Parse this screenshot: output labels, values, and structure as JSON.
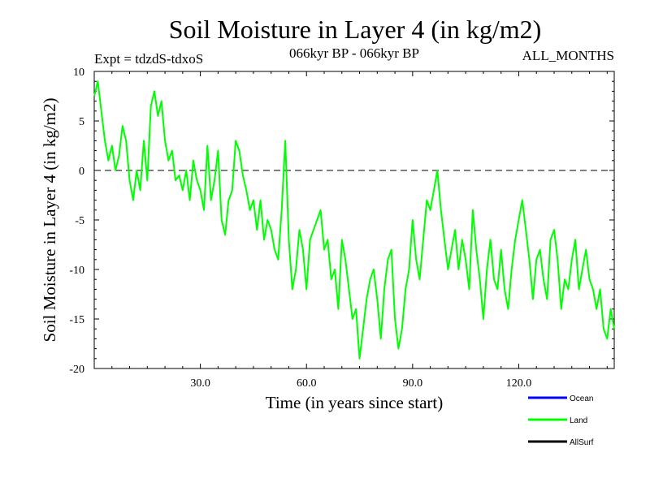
{
  "chart_data": {
    "type": "line",
    "title": "Soil Moisture in Layer 4 (in kg/m2)",
    "subtitle_left": "Expt = tdzdS-tdxoS",
    "subtitle_center": "066kyr BP - 066kyr BP",
    "subtitle_right": "ALL_MONTHS",
    "xlabel": "Time (in years since start)",
    "ylabel": "Soil Moisture in Layer 4 (in kg/m2)",
    "xlim": [
      0,
      147
    ],
    "ylim": [
      -20,
      10
    ],
    "x_ticks": [
      30,
      60,
      90,
      120
    ],
    "x_tick_labels": [
      "30.0",
      "60.0",
      "90.0",
      "120.0"
    ],
    "y_ticks": [
      10,
      5,
      0,
      -5,
      -10,
      -15,
      -20
    ],
    "y_tick_labels": [
      "10",
      "5",
      "0",
      "-5",
      "-10",
      "-15",
      "-20"
    ],
    "reference_line": 0,
    "legend": [
      {
        "name": "Ocean",
        "color": "#0000ff"
      },
      {
        "name": "Land",
        "color": "#00ff00"
      },
      {
        "name": "AllSurf",
        "color": "#000000"
      }
    ],
    "series": [
      {
        "name": "Land",
        "color": "#00ff00",
        "x": [
          0,
          1,
          2,
          3,
          4,
          5,
          6,
          7,
          8,
          9,
          10,
          11,
          12,
          13,
          14,
          15,
          16,
          17,
          18,
          19,
          20,
          21,
          22,
          23,
          24,
          25,
          26,
          27,
          28,
          29,
          30,
          31,
          32,
          33,
          34,
          35,
          36,
          37,
          38,
          39,
          40,
          41,
          42,
          43,
          44,
          45,
          46,
          47,
          48,
          49,
          50,
          51,
          52,
          53,
          54,
          55,
          56,
          57,
          58,
          59,
          60,
          61,
          62,
          63,
          64,
          65,
          66,
          67,
          68,
          69,
          70,
          71,
          72,
          73,
          74,
          75,
          76,
          77,
          78,
          79,
          80,
          81,
          82,
          83,
          84,
          85,
          86,
          87,
          88,
          89,
          90,
          91,
          92,
          93,
          94,
          95,
          96,
          97,
          98,
          99,
          100,
          101,
          102,
          103,
          104,
          105,
          106,
          107,
          108,
          109,
          110,
          111,
          112,
          113,
          114,
          115,
          116,
          117,
          118,
          119,
          120,
          121,
          122,
          123,
          124,
          125,
          126,
          127,
          128,
          129,
          130,
          131,
          132,
          133,
          134,
          135,
          136,
          137,
          138,
          139,
          140,
          141,
          142,
          143,
          144,
          145,
          146,
          147
        ],
        "values": [
          7.5,
          9,
          6,
          3,
          1,
          2.5,
          0,
          1.5,
          4.5,
          3,
          -1,
          -3,
          0,
          -2,
          3,
          -1,
          6.5,
          8,
          5.5,
          7,
          3,
          1,
          2,
          -1,
          -0.5,
          -2,
          0,
          -3,
          1,
          -1,
          -2,
          -4,
          2.5,
          -3,
          -1,
          2,
          -5,
          -6.5,
          -3,
          -2,
          3,
          2,
          -0.5,
          -2,
          -4,
          -3,
          -6,
          -3,
          -7,
          -5,
          -6,
          -8,
          -9,
          -4,
          3,
          -7,
          -12,
          -10,
          -6,
          -8,
          -12,
          -7,
          -6,
          -5,
          -4,
          -8,
          -7,
          -11,
          -10,
          -14,
          -7,
          -9,
          -12,
          -15,
          -14,
          -19,
          -16,
          -13,
          -11,
          -10,
          -13,
          -17,
          -12,
          -9,
          -8,
          -15,
          -18,
          -16,
          -12,
          -10,
          -5,
          -9,
          -11,
          -7,
          -3,
          -4,
          -2,
          0,
          -4,
          -7,
          -10,
          -8,
          -6,
          -10,
          -7,
          -9,
          -12,
          -4,
          -8,
          -11,
          -15,
          -10,
          -7,
          -11,
          -12,
          -8,
          -12,
          -14,
          -10,
          -7,
          -5,
          -3,
          -6,
          -9,
          -13,
          -9,
          -8,
          -11,
          -13,
          -7,
          -6,
          -9,
          -14,
          -11,
          -12,
          -9,
          -7,
          -12,
          -10,
          -8,
          -11,
          -12,
          -14,
          -12,
          -16,
          -17,
          -14,
          -16
        ]
      }
    ]
  }
}
